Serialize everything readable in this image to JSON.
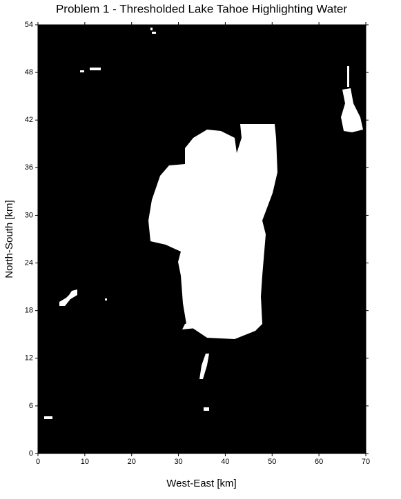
{
  "chart_data": {
    "type": "image",
    "title": "Problem 1 - Thresholded Lake Tahoe Highlighting Water",
    "xlabel": "West-East [km]",
    "ylabel": "North-South [km]",
    "xlim": [
      0,
      70
    ],
    "xticks": [
      0,
      10,
      20,
      30,
      40,
      50,
      60,
      70
    ],
    "ylim": [
      0,
      54
    ],
    "yticks": [
      0,
      6,
      12,
      18,
      24,
      30,
      36,
      42,
      48,
      54
    ]
  }
}
